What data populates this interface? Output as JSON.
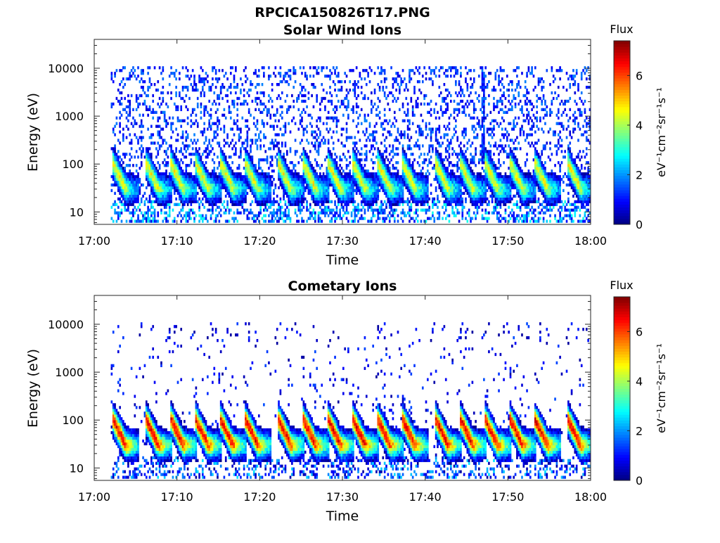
{
  "figure": {
    "title": "RPCICA150826T17.PNG"
  },
  "chart_data": [
    {
      "type": "heatmap",
      "title": "Solar Wind Ions",
      "xlabel": "Time",
      "ylabel": "Energy (eV)",
      "x_ticks": [
        "17:00",
        "17:10",
        "17:20",
        "17:30",
        "17:40",
        "17:50",
        "18:00"
      ],
      "xlim": [
        "17:00",
        "18:00"
      ],
      "y_scale": "log",
      "y_ticks": [
        10,
        100,
        1000,
        10000
      ],
      "y_tick_labels": [
        "10",
        "100",
        "1000",
        "10000"
      ],
      "ylim": [
        5.5,
        40000
      ],
      "colorbar": {
        "title": "Flux",
        "label": "eV⁻¹cm⁻²sr⁻¹s⁻¹",
        "ticks": [
          0,
          2,
          4,
          6
        ],
        "range": [
          0,
          7.4
        ],
        "colormap": "jet"
      },
      "grid": false,
      "bursts_minutes": [
        3,
        7,
        10,
        13,
        16,
        19,
        23,
        26,
        29,
        32,
        35,
        38,
        42,
        45,
        48,
        51,
        54,
        58
      ],
      "burst_peak_energy_eV": 30,
      "burst_peak_flux": 4.5,
      "background_flux": 0.6,
      "spike_minute": 47
    },
    {
      "type": "heatmap",
      "title": "Cometary Ions",
      "xlabel": "Time",
      "ylabel": "Energy (eV)",
      "x_ticks": [
        "17:00",
        "17:10",
        "17:20",
        "17:30",
        "17:40",
        "17:50",
        "18:00"
      ],
      "xlim": [
        "17:00",
        "18:00"
      ],
      "y_scale": "log",
      "y_ticks": [
        10,
        100,
        1000,
        10000
      ],
      "y_tick_labels": [
        "10",
        "100",
        "1000",
        "10000"
      ],
      "ylim": [
        5.5,
        40000
      ],
      "colorbar": {
        "title": "Flux",
        "label": "eV⁻¹cm⁻²sr⁻¹s⁻¹",
        "ticks": [
          0,
          2,
          4,
          6
        ],
        "range": [
          0,
          7.4
        ],
        "colormap": "jet"
      },
      "grid": false,
      "bursts_minutes": [
        3,
        7,
        10,
        13,
        16,
        19,
        23,
        26,
        29,
        32,
        35,
        38,
        42,
        45,
        48,
        51,
        54,
        58
      ],
      "burst_peak_energy_eV": 30,
      "burst_peak_flux": 6.5,
      "background_flux": 0.2
    }
  ]
}
